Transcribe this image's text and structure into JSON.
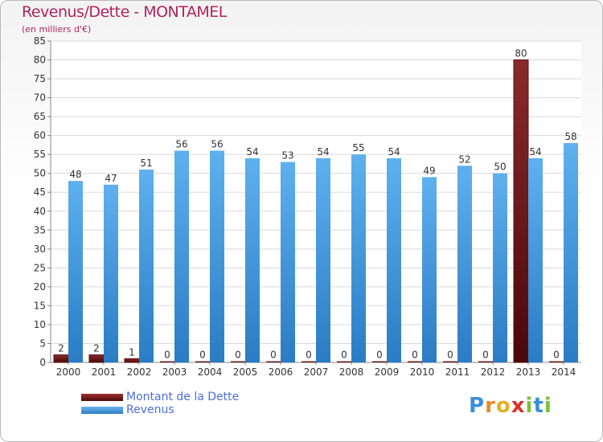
{
  "chart_data": {
    "type": "bar",
    "title": "Revenus/Dette - MONTAMEL",
    "subtitle": "(en milliers d'€)",
    "categories": [
      "2000",
      "2001",
      "2002",
      "2003",
      "2004",
      "2005",
      "2006",
      "2007",
      "2008",
      "2009",
      "2010",
      "2011",
      "2012",
      "2013",
      "2014"
    ],
    "series": [
      {
        "name": "Montant de la Dette",
        "color": "#7a1c1c",
        "values": [
          2,
          2,
          1,
          0,
          0,
          0,
          0,
          0,
          0,
          0,
          0,
          0,
          0,
          80,
          0
        ]
      },
      {
        "name": "Revenus",
        "color": "#3d8fd6",
        "values": [
          48,
          47,
          51,
          56,
          56,
          54,
          53,
          54,
          55,
          54,
          49,
          52,
          50,
          54,
          58
        ]
      }
    ],
    "ylim": [
      0,
      85
    ],
    "yticks": [
      0,
      5,
      10,
      15,
      20,
      25,
      30,
      35,
      40,
      45,
      50,
      55,
      60,
      65,
      70,
      75,
      80,
      85
    ],
    "grid": true,
    "legend_position": "bottom-left"
  },
  "logo": {
    "p": "P",
    "r": "r",
    "o": "o",
    "x": "x",
    "i": "i",
    "t": "t",
    "i2": "i"
  }
}
